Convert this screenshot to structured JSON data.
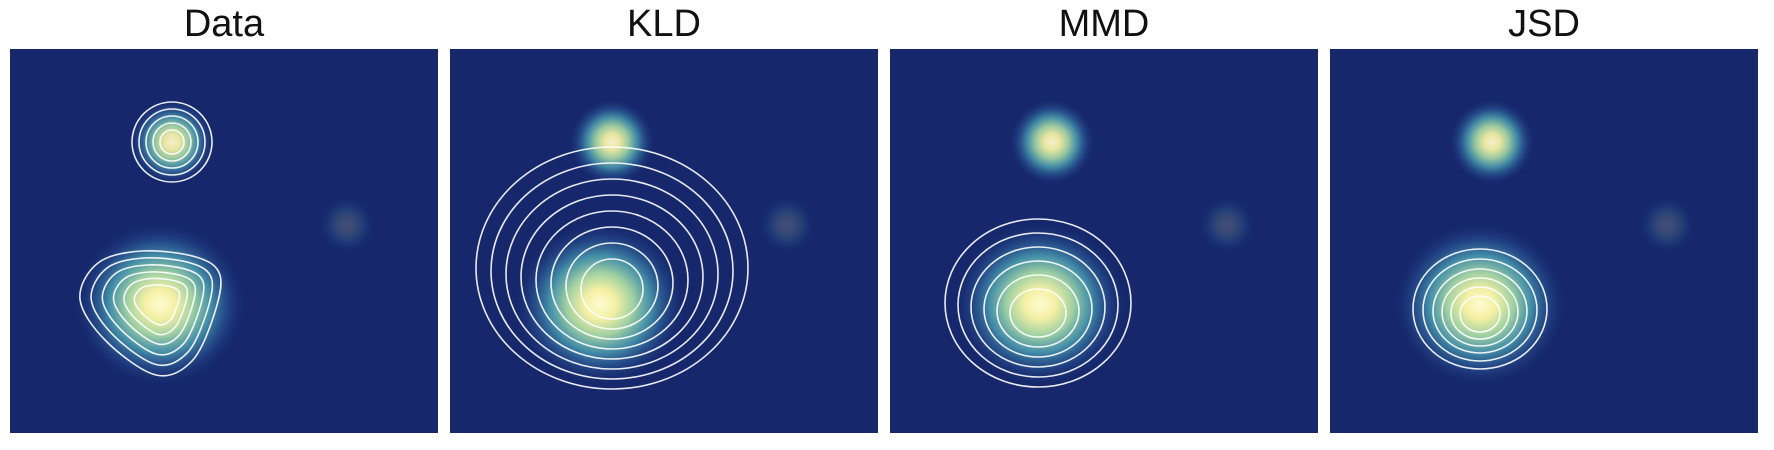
{
  "colors": {
    "background": "#16276b",
    "contour": "#ffffff"
  },
  "panels": [
    {
      "title": "Data",
      "contours": "data"
    },
    {
      "title": "KLD",
      "contours": "kld"
    },
    {
      "title": "MMD",
      "contours": "mmd"
    },
    {
      "title": "JSD",
      "contours": "jsd"
    }
  ]
}
